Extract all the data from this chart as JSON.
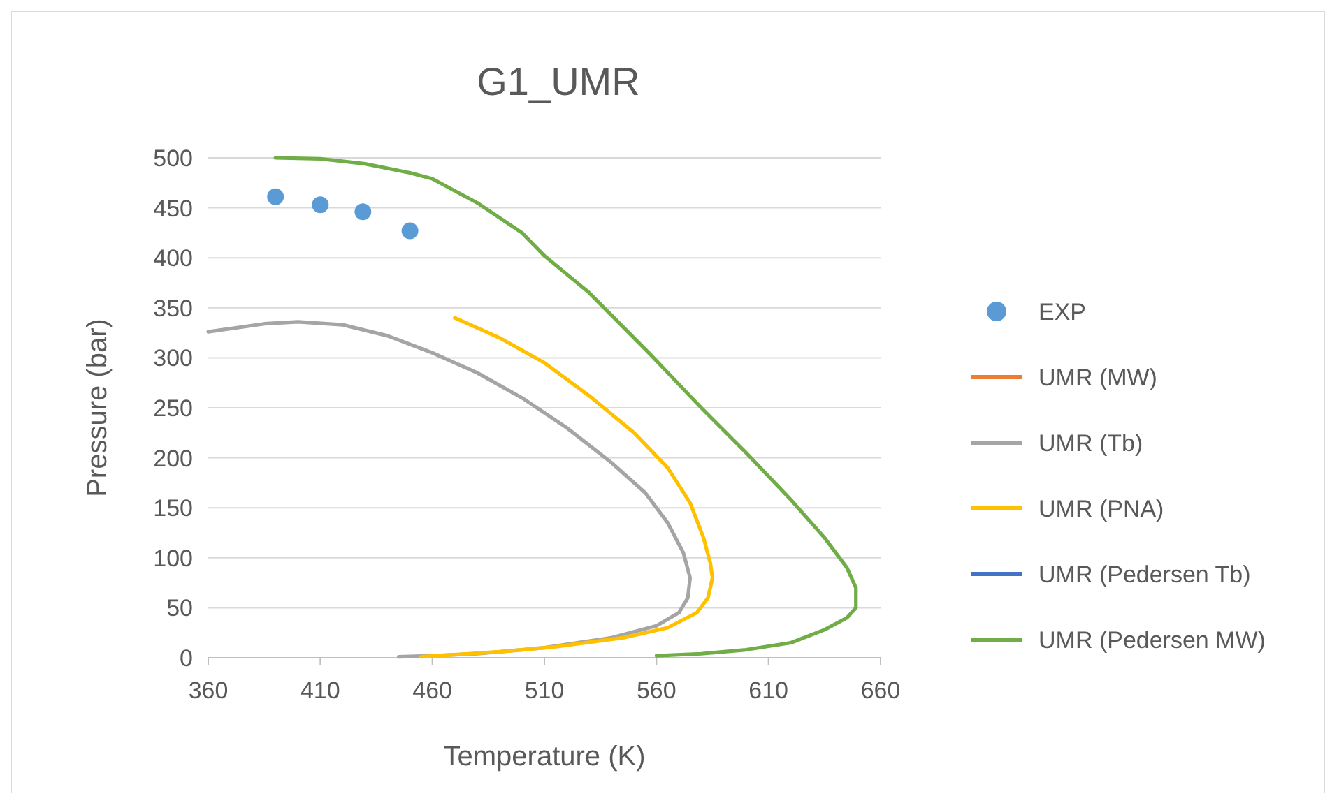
{
  "chart_data": {
    "type": "line",
    "title": "G1_UMR",
    "xlabel": "Temperature (K)",
    "ylabel": "Pressure (bar)",
    "xlim": [
      360,
      660
    ],
    "xticks": [
      360,
      410,
      460,
      510,
      560,
      610,
      660
    ],
    "ylim": [
      0,
      500
    ],
    "yticks": [
      0,
      50,
      100,
      150,
      200,
      250,
      300,
      350,
      400,
      450,
      500
    ],
    "grid": "y",
    "legend": "right",
    "series": [
      {
        "name": "EXP",
        "type": "scatter",
        "marker": "circle",
        "color": "#5b9bd5",
        "x": [
          390,
          410,
          429,
          450
        ],
        "values": [
          461,
          453,
          446,
          427
        ]
      },
      {
        "name": "UMR (MW)",
        "color": "#ed7d31"
      },
      {
        "name": "UMR (Tb)",
        "color": "#a5a5a5",
        "x": [
          360,
          385,
          400,
          420,
          440,
          460,
          480,
          500,
          520,
          540,
          555,
          565,
          572,
          575,
          574,
          570,
          560,
          540,
          510,
          480,
          460,
          445
        ],
        "values": [
          326,
          334,
          336,
          333,
          322,
          305,
          285,
          260,
          230,
          195,
          165,
          135,
          105,
          80,
          60,
          45,
          32,
          20,
          10,
          4,
          2,
          1
        ]
      },
      {
        "name": "UMR (PNA)",
        "color": "#ffc000",
        "x": [
          470,
          490,
          510,
          530,
          550,
          565,
          575,
          581,
          584,
          585,
          583,
          578,
          565,
          545,
          515,
          490,
          470,
          455
        ],
        "values": [
          340,
          320,
          295,
          262,
          225,
          190,
          155,
          120,
          95,
          80,
          60,
          45,
          30,
          20,
          11,
          6,
          3,
          1
        ]
      },
      {
        "name": "UMR (Pedersen Tb)",
        "color": "#4472c4"
      },
      {
        "name": "UMR (Pedersen MW)",
        "color": "#70ad47",
        "x": [
          390,
          410,
          430,
          450,
          460,
          480,
          500,
          510,
          530,
          557,
          580,
          600,
          620,
          635,
          645,
          649,
          649,
          645,
          635,
          620,
          600,
          580,
          560
        ],
        "values": [
          500,
          499,
          494,
          485,
          479,
          455,
          425,
          402,
          365,
          304,
          250,
          205,
          158,
          120,
          90,
          70,
          50,
          40,
          28,
          15,
          8,
          4,
          2
        ]
      }
    ]
  }
}
